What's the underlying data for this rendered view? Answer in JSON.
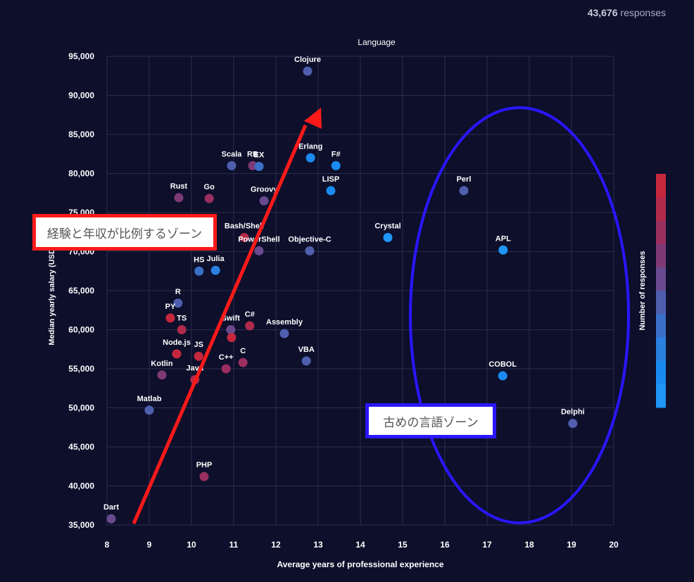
{
  "header": {
    "responses_count": "43,676",
    "responses_label": "responses"
  },
  "annotations": {
    "experience_zone": "経験と年収が比例するゾーン",
    "old_languages_zone": "古めの言語ゾーン",
    "arrow_color": "#ff1a1a",
    "ellipse_color": "#2a16ff"
  },
  "colors": {
    "background": "#0d0f2b",
    "grid": "#2a2d4e",
    "colorbar": [
      "#c5283d",
      "#b22a4b",
      "#9a2f5f",
      "#7f3a75",
      "#6a4a8f",
      "#4f5fae",
      "#3a6fc8",
      "#2a7fdf",
      "#1a8af0",
      "#1f95f5"
    ]
  },
  "chart_data": {
    "type": "scatter",
    "title": "Language",
    "xlabel": "Average years of professional experience",
    "ylabel": "Median yearly salary (USD)",
    "colorbar_label": "Number of responses",
    "xlim": [
      8,
      20
    ],
    "ylim": [
      35000,
      95000
    ],
    "xticks": [
      "8",
      "9",
      "10",
      "11",
      "12",
      "13",
      "14",
      "15",
      "16",
      "17",
      "18",
      "19",
      "20"
    ],
    "yticks": [
      "35,000",
      "40,000",
      "45,000",
      "50,000",
      "55,000",
      "60,000",
      "65,000",
      "70,000",
      "75,000",
      "80,000",
      "85,000",
      "90,000",
      "95,000"
    ],
    "grid": true,
    "points": [
      {
        "label": "Clojure",
        "x": 12.75,
        "y": 93100,
        "color": "#4f5fae"
      },
      {
        "label": "Scala",
        "x": 10.95,
        "y": 81000,
        "color": "#4f5fae"
      },
      {
        "label": "RB",
        "x": 11.45,
        "y": 81000,
        "color": "#7f3a75"
      },
      {
        "label": "EX",
        "x": 11.6,
        "y": 80900,
        "color": "#3a6fc8"
      },
      {
        "label": "Erlang",
        "x": 12.82,
        "y": 82000,
        "color": "#1a8af0"
      },
      {
        "label": "F#",
        "x": 13.42,
        "y": 81000,
        "color": "#1a8af0"
      },
      {
        "label": "LISP",
        "x": 13.3,
        "y": 77800,
        "color": "#1a8af0"
      },
      {
        "label": "Rust",
        "x": 9.7,
        "y": 76900,
        "color": "#7f3a75"
      },
      {
        "label": "Go",
        "x": 10.42,
        "y": 76800,
        "color": "#9a2f5f"
      },
      {
        "label": "Groovy",
        "x": 11.72,
        "y": 76500,
        "color": "#6a4a8f"
      },
      {
        "label": "Perl",
        "x": 16.45,
        "y": 77800,
        "color": "#4f5fae"
      },
      {
        "label": "Bash/Shell",
        "x": 11.25,
        "y": 71800,
        "color": "#b22a4b"
      },
      {
        "label": "PowerShell",
        "x": 11.6,
        "y": 70100,
        "color": "#6a4a8f"
      },
      {
        "label": "Objective-C",
        "x": 12.8,
        "y": 70100,
        "color": "#4f5fae"
      },
      {
        "label": "Crystal",
        "x": 14.65,
        "y": 71800,
        "color": "#1f95f5"
      },
      {
        "label": "APL",
        "x": 17.38,
        "y": 70200,
        "color": "#1f95f5"
      },
      {
        "label": "HS",
        "x": 10.18,
        "y": 67500,
        "color": "#3a6fc8"
      },
      {
        "label": "Julia",
        "x": 10.57,
        "y": 67600,
        "color": "#2a7fdf"
      },
      {
        "label": "R",
        "x": 9.68,
        "y": 63400,
        "color": "#4f5fae"
      },
      {
        "label": "PY",
        "x": 9.5,
        "y": 61500,
        "color": "#c5283d"
      },
      {
        "label": "TS",
        "x": 9.77,
        "y": 60000,
        "color": "#b22a4b"
      },
      {
        "label": "Swift",
        "x": 10.93,
        "y": 60000,
        "color": "#6a4a8f"
      },
      {
        "label": "C#",
        "x": 11.38,
        "y": 60500,
        "color": "#b22a4b"
      },
      {
        "label": "Assembly",
        "x": 12.2,
        "y": 59500,
        "color": "#4f5fae"
      },
      {
        "label": "Node.js",
        "x": 9.65,
        "y": 56900,
        "color": "#c5283d"
      },
      {
        "label": "JS",
        "x": 10.17,
        "y": 56600,
        "color": "#c5283d"
      },
      {
        "label": "",
        "x": 10.95,
        "y": 59000,
        "color": "#c5283d"
      },
      {
        "label": "C++",
        "x": 10.82,
        "y": 55000,
        "color": "#9a2f5f"
      },
      {
        "label": "C",
        "x": 11.22,
        "y": 55800,
        "color": "#9a2f5f"
      },
      {
        "label": "VBA",
        "x": 12.72,
        "y": 56000,
        "color": "#4f5fae"
      },
      {
        "label": "Kotlin",
        "x": 9.3,
        "y": 54200,
        "color": "#7f3a75"
      },
      {
        "label": "Java",
        "x": 10.08,
        "y": 53600,
        "color": "#b22a4b"
      },
      {
        "label": "COBOL",
        "x": 17.37,
        "y": 54100,
        "color": "#1a8af0"
      },
      {
        "label": "Matlab",
        "x": 9.0,
        "y": 49700,
        "color": "#4f5fae"
      },
      {
        "label": "Delphi",
        "x": 19.03,
        "y": 48000,
        "color": "#4f5fae"
      },
      {
        "label": "PHP",
        "x": 10.3,
        "y": 41200,
        "color": "#9a2f5f"
      },
      {
        "label": "Dart",
        "x": 8.1,
        "y": 35800,
        "color": "#6a4a8f"
      }
    ]
  }
}
